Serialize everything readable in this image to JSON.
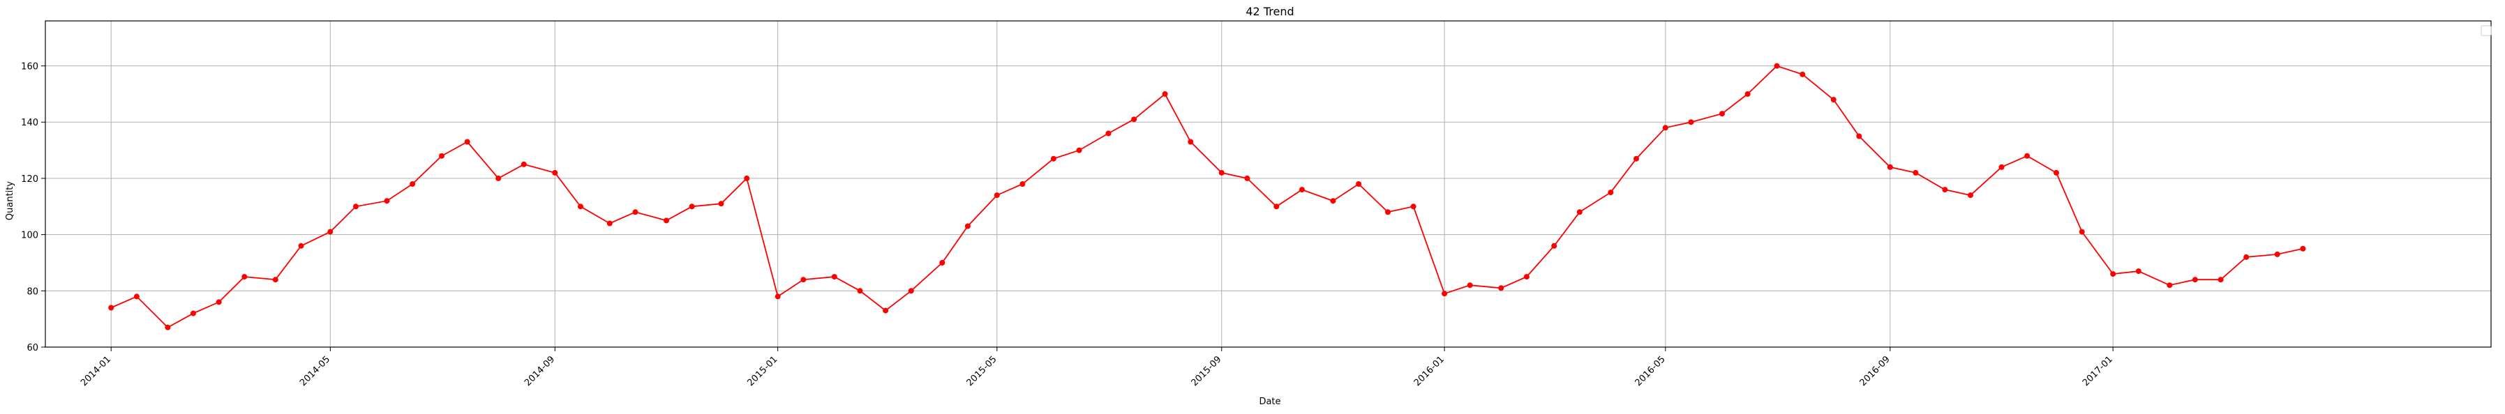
{
  "chart_data": {
    "type": "line",
    "title": "42 Trend",
    "xlabel": "Date",
    "ylabel": "Quantity",
    "x_range": [
      "2013-11-26",
      "2017-07-27"
    ],
    "ylim": [
      60,
      176
    ],
    "grid": true,
    "legend": "top-right",
    "marker": "circle",
    "color": "#ff0000",
    "x_ticks": [
      "2014-01",
      "2014-05",
      "2014-09",
      "2015-01",
      "2015-05",
      "2015-09",
      "2016-01",
      "2016-05",
      "2016-09",
      "2017-01"
    ],
    "y_ticks": [
      60,
      80,
      100,
      120,
      140,
      160
    ],
    "x": [
      "2014-01-01",
      "2014-01-15",
      "2014-02-01",
      "2014-02-15",
      "2014-03-01",
      "2014-03-15",
      "2014-04-01",
      "2014-04-15",
      "2014-05-01",
      "2014-05-15",
      "2014-06-01",
      "2014-06-15",
      "2014-07-01",
      "2014-07-15",
      "2014-08-01",
      "2014-08-15",
      "2014-09-01",
      "2014-09-15",
      "2014-10-01",
      "2014-10-15",
      "2014-11-01",
      "2014-11-15",
      "2014-12-01",
      "2014-12-15",
      "2015-01-01",
      "2015-01-15",
      "2015-02-01",
      "2015-02-15",
      "2015-03-01",
      "2015-03-15",
      "2015-04-01",
      "2015-04-15",
      "2015-05-01",
      "2015-05-15",
      "2015-06-01",
      "2015-06-15",
      "2015-07-01",
      "2015-07-15",
      "2015-08-01",
      "2015-08-15",
      "2015-09-01",
      "2015-09-15",
      "2015-10-01",
      "2015-10-15",
      "2015-11-01",
      "2015-11-15",
      "2015-12-01",
      "2015-12-15",
      "2016-01-01",
      "2016-01-15",
      "2016-02-01",
      "2016-02-15",
      "2016-03-01",
      "2016-03-15",
      "2016-04-01",
      "2016-04-15",
      "2016-05-01",
      "2016-05-15",
      "2016-06-01",
      "2016-06-15",
      "2016-07-01",
      "2016-07-15",
      "2016-08-01",
      "2016-08-15",
      "2016-09-01",
      "2016-09-15",
      "2016-10-01",
      "2016-10-15",
      "2016-11-01",
      "2016-11-15",
      "2016-12-01",
      "2016-12-15",
      "2017-01-01",
      "2017-01-15",
      "2017-02-01",
      "2017-02-15",
      "2017-03-01",
      "2017-03-15",
      "2017-04-01",
      "2017-04-15"
    ],
    "series": [
      {
        "values": [
          74,
          78,
          67,
          72,
          76,
          85,
          84,
          96,
          101,
          110,
          112,
          118,
          128,
          133,
          120,
          125,
          122,
          110,
          104,
          108,
          105,
          110,
          111,
          120,
          78,
          84,
          85,
          80,
          73,
          80,
          90,
          103,
          114,
          118,
          127,
          130,
          136,
          141,
          150,
          133,
          122,
          120,
          110,
          116,
          112,
          118,
          108,
          110,
          79,
          82,
          81,
          85,
          96,
          108,
          115,
          127,
          138,
          140,
          143,
          150,
          160,
          157,
          148,
          135,
          124,
          122,
          116,
          114,
          124,
          128,
          122,
          101,
          86,
          87,
          82,
          84,
          84,
          92,
          93,
          95
        ]
      }
    ]
  }
}
